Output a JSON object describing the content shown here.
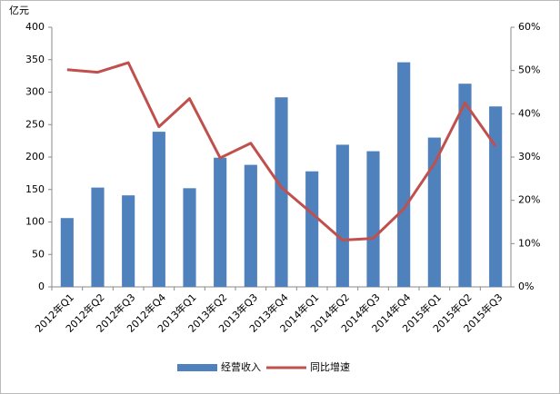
{
  "chart_data": {
    "type": "bar",
    "y_label": "亿元",
    "categories": [
      "2012年Q1",
      "2012年Q2",
      "2012年Q3",
      "2012年Q4",
      "2013年Q1",
      "2013年Q2",
      "2013年Q3",
      "2013年Q4",
      "2014年Q1",
      "2014年Q2",
      "2014年Q3",
      "2014年Q4",
      "2015年Q1",
      "2015年Q2",
      "2015年Q3"
    ],
    "series": [
      {
        "name": "经营收入",
        "type": "bar",
        "color": "#4f81bd",
        "values": [
          106,
          153,
          141,
          239,
          152,
          199,
          188,
          292,
          178,
          219,
          209,
          346,
          230,
          313,
          278
        ]
      },
      {
        "name": "同比增速",
        "type": "line",
        "axis": "y2",
        "color": "#c0504d",
        "values": [
          50.2,
          49.6,
          51.8,
          37,
          43.5,
          29.8,
          33.2,
          23,
          17,
          10.8,
          11.2,
          18,
          28.5,
          42.5,
          32.5
        ]
      }
    ],
    "ylim": [
      0,
      400
    ],
    "yticks": [
      0,
      50,
      100,
      150,
      200,
      250,
      300,
      350,
      400
    ],
    "y2lim": [
      0,
      60
    ],
    "y2ticks": [
      {
        "value": 0,
        "label": "0%"
      },
      {
        "value": 10,
        "label": "10%"
      },
      {
        "value": 20,
        "label": "20%"
      },
      {
        "value": 30,
        "label": "30%"
      },
      {
        "value": 40,
        "label": "40%"
      },
      {
        "value": 50,
        "label": "50%"
      },
      {
        "value": 60,
        "label": "60%"
      }
    ],
    "legend": "bottom"
  }
}
